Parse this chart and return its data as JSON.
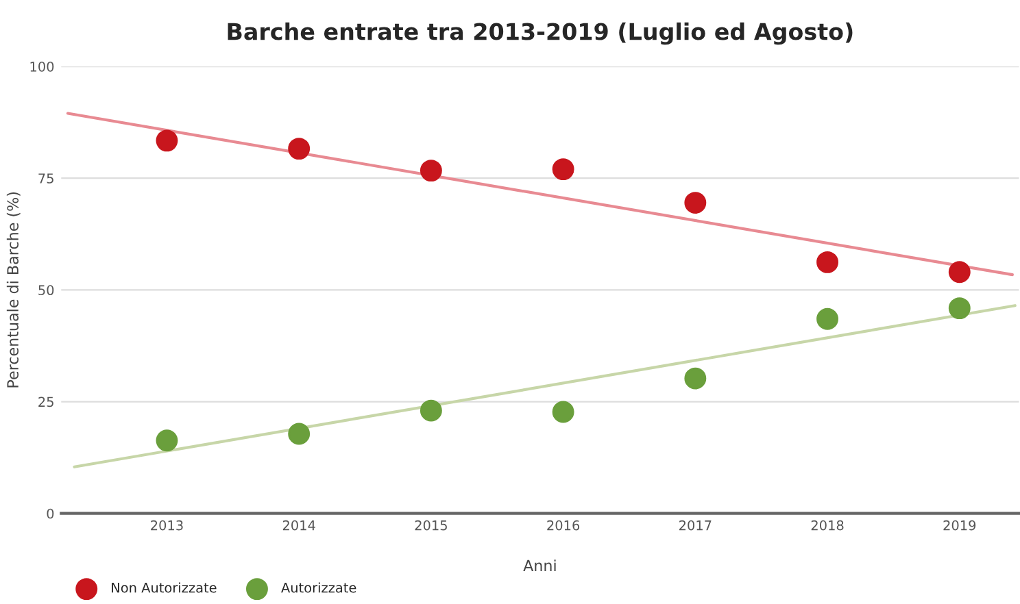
{
  "chart_data": {
    "type": "scatter",
    "title": "Barche entrate tra 2013-2019 (Luglio ed Agosto)",
    "xlabel": "Anni",
    "ylabel": "Percentuale di Barche (%)",
    "x": [
      2013,
      2014,
      2015,
      2016,
      2017,
      2018,
      2019
    ],
    "series": [
      {
        "name": "Non Autorizzate",
        "color": "#c8161d",
        "values": [
          83.4,
          81.6,
          76.7,
          77,
          69.5,
          56.2,
          54
        ]
      },
      {
        "name": "Autorizzate",
        "color": "#6a9f3c",
        "values": [
          16.3,
          17.8,
          23,
          22.7,
          30.2,
          43.5,
          45.9
        ]
      },
      {
        "type": "line",
        "color": "#e88a92",
        "x": [
          2012.25,
          2019.4
        ],
        "values": [
          89.5,
          53.4
        ],
        "marker": "none"
      },
      {
        "type": "line",
        "color": "#c7d6a8",
        "x": [
          2012.3,
          2019.42
        ],
        "values": [
          10.4,
          46.5
        ],
        "marker": "none"
      }
    ],
    "xlim": [
      2012.2,
      2019.45
    ],
    "xticks": [
      2013,
      2014,
      2015,
      2016,
      2017,
      2018,
      2019
    ],
    "ylim": [
      0,
      100
    ],
    "yticks": [
      0,
      25,
      50,
      75,
      100
    ],
    "grid": "y",
    "legend": "bottom left",
    "marker": "circle"
  }
}
